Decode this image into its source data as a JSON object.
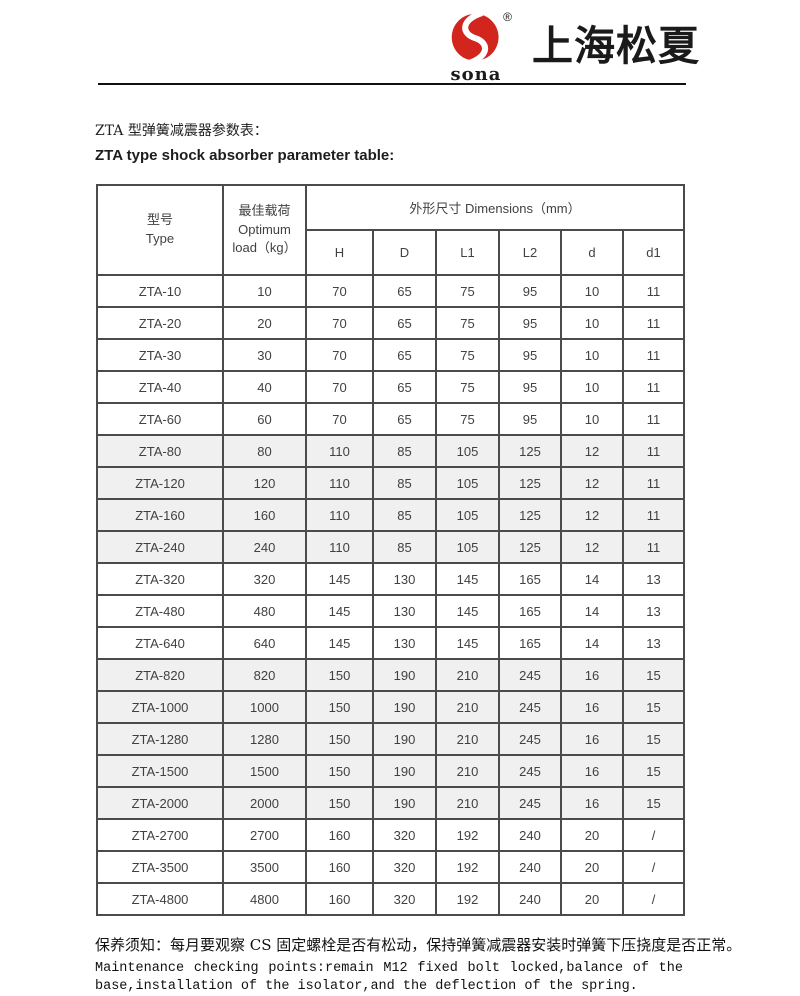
{
  "logo": {
    "registered_symbol": "®",
    "brand": "sona",
    "company": "上海松夏",
    "accent_color": "#d1251d"
  },
  "titles": {
    "zh": "ZTA 型弹簧减震器参数表：",
    "en": "ZTA type shock absorber parameter table:"
  },
  "table": {
    "header": {
      "type_zh": "型号",
      "type_en": "Type",
      "load_zh": "最佳载荷",
      "load_en1": "Optimum",
      "load_en2": "load（kg）",
      "dims": "外形尺寸 Dimensions（mm）",
      "dim_cols": [
        "H",
        "D",
        "L1",
        "L2",
        "d",
        "d1"
      ]
    },
    "rows": [
      {
        "type": "ZTA-10",
        "load": "10",
        "h": "70",
        "d": "65",
        "l1": "75",
        "l2": "95",
        "dd": "10",
        "d1": "11",
        "shaded": false
      },
      {
        "type": "ZTA-20",
        "load": "20",
        "h": "70",
        "d": "65",
        "l1": "75",
        "l2": "95",
        "dd": "10",
        "d1": "11",
        "shaded": false
      },
      {
        "type": "ZTA-30",
        "load": "30",
        "h": "70",
        "d": "65",
        "l1": "75",
        "l2": "95",
        "dd": "10",
        "d1": "11",
        "shaded": false
      },
      {
        "type": "ZTA-40",
        "load": "40",
        "h": "70",
        "d": "65",
        "l1": "75",
        "l2": "95",
        "dd": "10",
        "d1": "11",
        "shaded": false
      },
      {
        "type": "ZTA-60",
        "load": "60",
        "h": "70",
        "d": "65",
        "l1": "75",
        "l2": "95",
        "dd": "10",
        "d1": "11",
        "shaded": false
      },
      {
        "type": "ZTA-80",
        "load": "80",
        "h": "110",
        "d": "85",
        "l1": "105",
        "l2": "125",
        "dd": "12",
        "d1": "11",
        "shaded": true
      },
      {
        "type": "ZTA-120",
        "load": "120",
        "h": "110",
        "d": "85",
        "l1": "105",
        "l2": "125",
        "dd": "12",
        "d1": "11",
        "shaded": true
      },
      {
        "type": "ZTA-160",
        "load": "160",
        "h": "110",
        "d": "85",
        "l1": "105",
        "l2": "125",
        "dd": "12",
        "d1": "11",
        "shaded": true
      },
      {
        "type": "ZTA-240",
        "load": "240",
        "h": "110",
        "d": "85",
        "l1": "105",
        "l2": "125",
        "dd": "12",
        "d1": "11",
        "shaded": true
      },
      {
        "type": "ZTA-320",
        "load": "320",
        "h": "145",
        "d": "130",
        "l1": "145",
        "l2": "165",
        "dd": "14",
        "d1": "13",
        "shaded": false
      },
      {
        "type": "ZTA-480",
        "load": "480",
        "h": "145",
        "d": "130",
        "l1": "145",
        "l2": "165",
        "dd": "14",
        "d1": "13",
        "shaded": false
      },
      {
        "type": "ZTA-640",
        "load": "640",
        "h": "145",
        "d": "130",
        "l1": "145",
        "l2": "165",
        "dd": "14",
        "d1": "13",
        "shaded": false
      },
      {
        "type": "ZTA-820",
        "load": "820",
        "h": "150",
        "d": "190",
        "l1": "210",
        "l2": "245",
        "dd": "16",
        "d1": "15",
        "shaded": true
      },
      {
        "type": "ZTA-1000",
        "load": "1000",
        "h": "150",
        "d": "190",
        "l1": "210",
        "l2": "245",
        "dd": "16",
        "d1": "15",
        "shaded": true
      },
      {
        "type": "ZTA-1280",
        "load": "1280",
        "h": "150",
        "d": "190",
        "l1": "210",
        "l2": "245",
        "dd": "16",
        "d1": "15",
        "shaded": true
      },
      {
        "type": "ZTA-1500",
        "load": "1500",
        "h": "150",
        "d": "190",
        "l1": "210",
        "l2": "245",
        "dd": "16",
        "d1": "15",
        "shaded": true
      },
      {
        "type": "ZTA-2000",
        "load": "2000",
        "h": "150",
        "d": "190",
        "l1": "210",
        "l2": "245",
        "dd": "16",
        "d1": "15",
        "shaded": true
      },
      {
        "type": "ZTA-2700",
        "load": "2700",
        "h": "160",
        "d": "320",
        "l1": "192",
        "l2": "240",
        "dd": "20",
        "d1": "/",
        "shaded": false
      },
      {
        "type": "ZTA-3500",
        "load": "3500",
        "h": "160",
        "d": "320",
        "l1": "192",
        "l2": "240",
        "dd": "20",
        "d1": "/",
        "shaded": false
      },
      {
        "type": "ZTA-4800",
        "load": "4800",
        "h": "160",
        "d": "320",
        "l1": "192",
        "l2": "240",
        "dd": "20",
        "d1": "/",
        "shaded": false
      }
    ]
  },
  "footer": {
    "zh": "保养须知：每月要观察 CS 固定螺栓是否有松动，保持弹簧减震器安装时弹簧下压挠度是否正常。",
    "en_line1": "Maintenance checking points:remain M12 fixed bolt locked,balance of the",
    "en_line2": "base,installation of the isolator,and the deflection of the spring."
  }
}
